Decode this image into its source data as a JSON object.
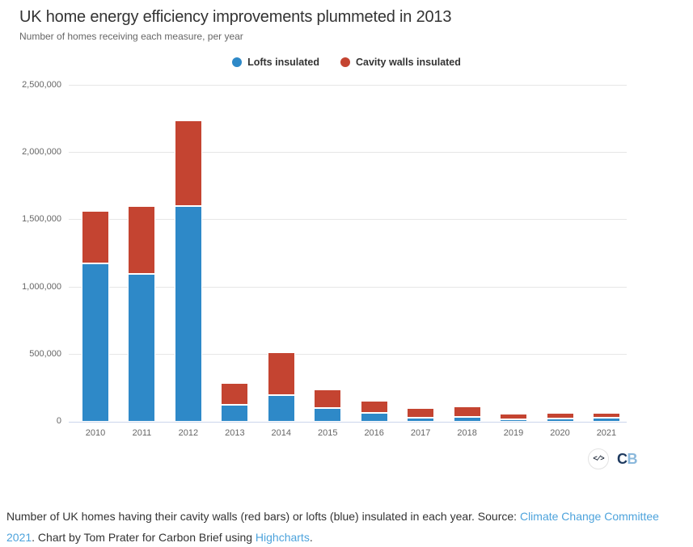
{
  "header": {
    "title": "UK home energy efficiency improvements plummeted in 2013",
    "subtitle": "Number of homes receiving each measure, per year"
  },
  "legend": {
    "items": [
      {
        "label": "Lofts insulated",
        "color": "#2E89C8"
      },
      {
        "label": "Cavity walls insulated",
        "color": "#C44431"
      }
    ]
  },
  "chart_data": {
    "type": "bar",
    "stacked": true,
    "title": "UK home energy efficiency improvements plummeted in 2013",
    "subtitle": "Number of homes receiving each measure, per year",
    "categories": [
      "2010",
      "2011",
      "2012",
      "2013",
      "2014",
      "2015",
      "2016",
      "2017",
      "2018",
      "2019",
      "2020",
      "2021"
    ],
    "series": [
      {
        "name": "Lofts insulated",
        "color": "#2E89C8",
        "values": [
          1180000,
          1100000,
          1605000,
          125000,
          200000,
          100000,
          65000,
          33000,
          36000,
          20000,
          26000,
          28000
        ]
      },
      {
        "name": "Cavity walls insulated",
        "color": "#C44431",
        "values": [
          390000,
          505000,
          635000,
          165000,
          320000,
          140000,
          90000,
          72000,
          76000,
          40000,
          38000,
          38000
        ]
      }
    ],
    "xlabel": "",
    "ylabel": "",
    "ylim": [
      0,
      2500000
    ],
    "yticks": [
      {
        "value": 0,
        "label": "0"
      },
      {
        "value": 500000,
        "label": "500,000"
      },
      {
        "value": 1000000,
        "label": "1,000,000"
      },
      {
        "value": 1500000,
        "label": "1,500,000"
      },
      {
        "value": 2000000,
        "label": "2,000,000"
      },
      {
        "value": 2500000,
        "label": "2,500,000"
      }
    ],
    "grid": "horizontal",
    "legend_position": "top-center"
  },
  "branding": {
    "embed_icon": "code-embed-icon",
    "embed_glyph": "</>",
    "logo_c": "C",
    "logo_b": "B"
  },
  "caption": {
    "link_color": "#4DA3DC",
    "segments": [
      {
        "text": "Number of UK homes having their cavity walls (red bars) or lofts (blue) insulated in each year. Source: ",
        "link": false
      },
      {
        "text": "Climate Change Committee 2021",
        "link": true,
        "name": "source-link"
      },
      {
        "text": ". Chart by Tom Prater for Carbon Brief using ",
        "link": false
      },
      {
        "text": "Highcharts",
        "link": true,
        "name": "highcharts-link"
      },
      {
        "text": ".",
        "link": false
      }
    ]
  }
}
